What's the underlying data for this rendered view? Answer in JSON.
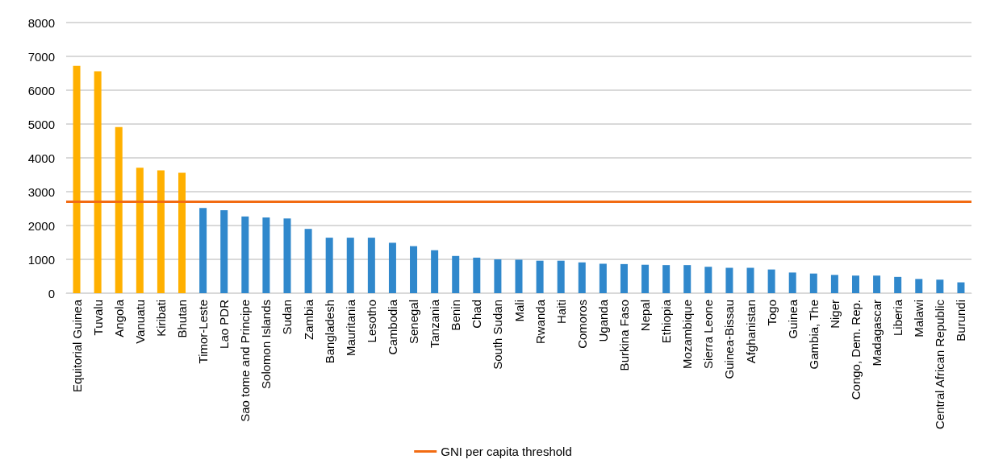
{
  "chart_data": {
    "type": "bar",
    "categories": [
      "Equitorial Guinea",
      "Tuvalu",
      "Angola",
      "Vanuatu",
      "Kiribati",
      "Bhutan",
      "Timor-Leste",
      "Lao PDR",
      "Sao tome and Principe",
      "Solomon Islands",
      "Sudan",
      "Zambia",
      "Bangladesh",
      "Mauritania",
      "Lesotho",
      "Cambodia",
      "Senegal",
      "Tanzania",
      "Benin",
      "Chad",
      "South Sudan",
      "Mali",
      "Rwanda",
      "Haiti",
      "Comoros",
      "Uganda",
      "Burkina Faso",
      "Nepal",
      "Ethiopia",
      "Mozambique",
      "Sierra Leone",
      "Guinea-Bissau",
      "Afghanistan",
      "Togo",
      "Guinea",
      "Gambia, The",
      "Niger",
      "Congo, Dem. Rep.",
      "Madagascar",
      "Liberia",
      "Malawi",
      "Central African Republic",
      "Burundi"
    ],
    "values": [
      6720,
      6560,
      4910,
      3710,
      3630,
      3560,
      2520,
      2450,
      2270,
      2240,
      2210,
      1900,
      1640,
      1640,
      1640,
      1490,
      1390,
      1270,
      1100,
      1050,
      1000,
      990,
      960,
      960,
      910,
      870,
      860,
      840,
      830,
      830,
      780,
      750,
      750,
      700,
      610,
      580,
      540,
      520,
      520,
      480,
      420,
      400,
      320
    ],
    "colors": [
      "#ffb000",
      "#ffb000",
      "#ffb000",
      "#ffb000",
      "#ffb000",
      "#ffb000",
      "#3088cc",
      "#3088cc",
      "#3088cc",
      "#3088cc",
      "#3088cc",
      "#3088cc",
      "#3088cc",
      "#3088cc",
      "#3088cc",
      "#3088cc",
      "#3088cc",
      "#3088cc",
      "#3088cc",
      "#3088cc",
      "#3088cc",
      "#3088cc",
      "#3088cc",
      "#3088cc",
      "#3088cc",
      "#3088cc",
      "#3088cc",
      "#3088cc",
      "#3088cc",
      "#3088cc",
      "#3088cc",
      "#3088cc",
      "#3088cc",
      "#3088cc",
      "#3088cc",
      "#3088cc",
      "#3088cc",
      "#3088cc",
      "#3088cc",
      "#3088cc",
      "#3088cc",
      "#3088cc",
      "#3088cc"
    ],
    "ylim": [
      0,
      8000
    ],
    "yticks": [
      0,
      1000,
      2000,
      3000,
      4000,
      5000,
      6000,
      7000,
      8000
    ],
    "grid": "y",
    "legend": "bottom",
    "ref_lines": [
      {
        "axis": "y",
        "value": 2710,
        "label": "GNI per capita threshold",
        "color": "#f26b12",
        "line_style": "solid"
      }
    ]
  }
}
